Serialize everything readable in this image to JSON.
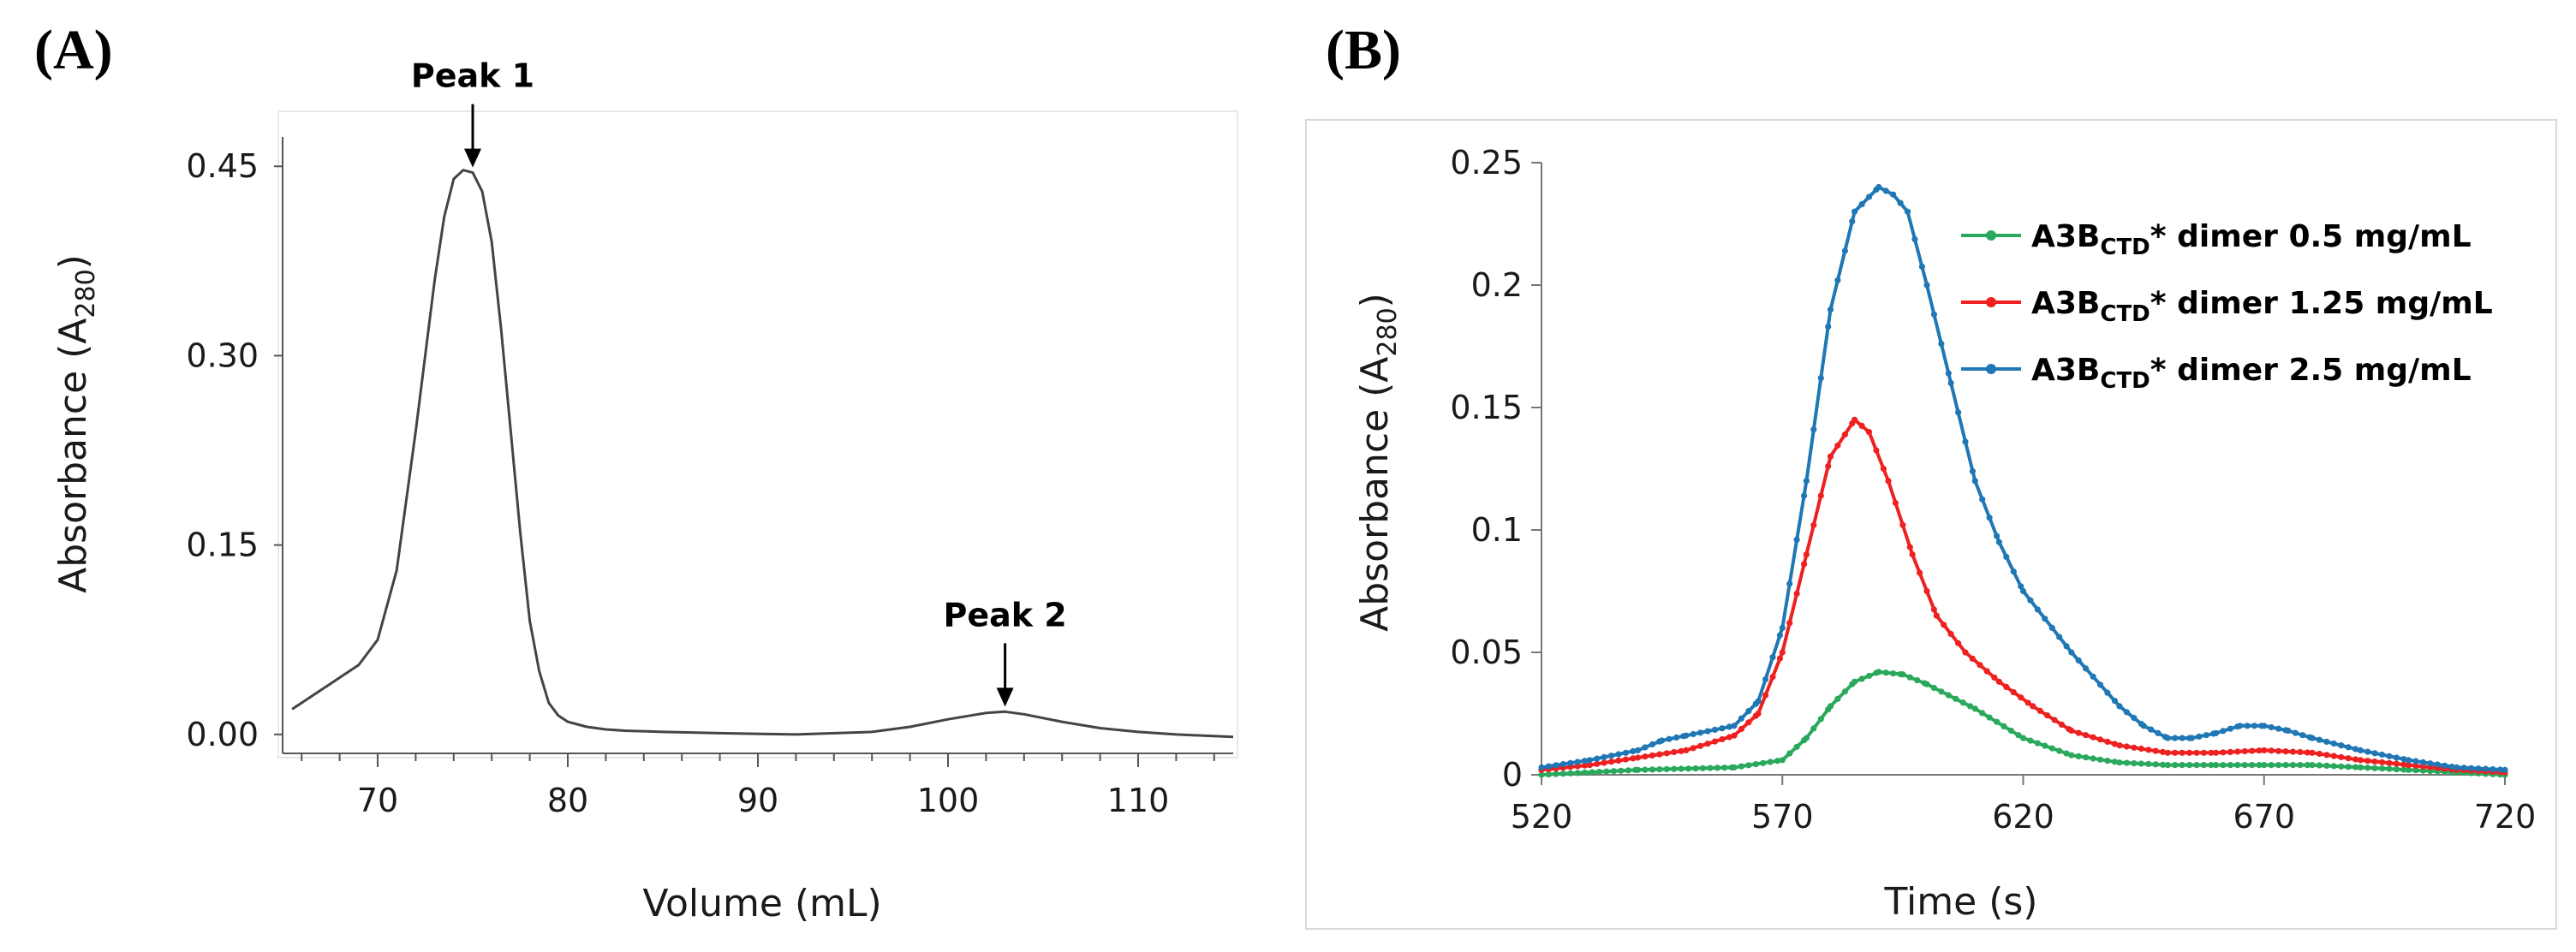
{
  "chart_data": [
    {
      "panel": "(A)",
      "type": "line",
      "xlabel": "Volume (mL)",
      "ylabel": {
        "text": "Absorbance (A",
        "sub": "280",
        "tail": ")"
      },
      "xlim": [
        65,
        115
      ],
      "ylim": [
        -0.015,
        0.48
      ],
      "xticks": [
        70,
        80,
        90,
        100,
        110
      ],
      "xtick_labels": [
        "70",
        "80",
        "90",
        "100",
        "110"
      ],
      "yticks": [
        0.0,
        0.15,
        0.3,
        0.45
      ],
      "ytick_labels": [
        "0.00",
        "0.15",
        "0.30",
        "0.45"
      ],
      "color": "#444444",
      "series": [
        {
          "x": [
            65.5,
            66,
            67,
            68,
            69,
            70,
            71,
            72,
            72.5,
            73,
            73.5,
            74,
            74.5,
            75,
            75.5,
            76,
            76.5,
            77,
            77.5,
            78,
            78.5,
            79,
            79.5,
            80,
            81,
            82,
            83,
            85,
            88,
            92,
            96,
            98,
            100,
            102,
            103,
            104,
            106,
            108,
            110,
            112,
            115
          ],
          "y": [
            0.02,
            0.025,
            0.035,
            0.045,
            0.055,
            0.075,
            0.13,
            0.24,
            0.3,
            0.36,
            0.41,
            0.44,
            0.447,
            0.445,
            0.43,
            0.39,
            0.32,
            0.24,
            0.16,
            0.09,
            0.05,
            0.025,
            0.015,
            0.01,
            0.006,
            0.004,
            0.003,
            0.002,
            0.001,
            0.0,
            0.002,
            0.006,
            0.012,
            0.017,
            0.018,
            0.016,
            0.01,
            0.005,
            0.002,
            0.0,
            -0.002
          ]
        }
      ],
      "annotations": [
        {
          "text": "Peak 1",
          "x": 75,
          "y": 0.445
        },
        {
          "text": "Peak 2",
          "x": 103,
          "y": 0.018
        }
      ]
    },
    {
      "panel": "(B)",
      "type": "line",
      "xlabel": "Time (s)",
      "ylabel": {
        "text": "Absorbance (A",
        "sub": "280",
        "tail": ")"
      },
      "xlim": [
        520,
        720
      ],
      "ylim": [
        0,
        0.25
      ],
      "xticks": [
        520,
        570,
        620,
        670,
        720
      ],
      "xtick_labels": [
        "520",
        "570",
        "620",
        "670",
        "720"
      ],
      "yticks": [
        0,
        0.05,
        0.1,
        0.15,
        0.2,
        0.25
      ],
      "ytick_labels": [
        "0",
        "0.05",
        "0.1",
        "0.15",
        "0.2",
        "0.25"
      ],
      "legend_position": "top-right",
      "series": [
        {
          "name": "A3B",
          "sub": "CTD",
          "suffix": "* dimer 0.5 mg/mL",
          "color": "#2aa85c",
          "x": [
            520,
            540,
            560,
            570,
            575,
            580,
            585,
            590,
            595,
            600,
            610,
            620,
            630,
            640,
            650,
            660,
            670,
            680,
            690,
            700,
            710,
            720
          ],
          "y": [
            0.0,
            0.002,
            0.003,
            0.006,
            0.015,
            0.028,
            0.038,
            0.042,
            0.041,
            0.037,
            0.027,
            0.015,
            0.008,
            0.005,
            0.004,
            0.004,
            0.004,
            0.004,
            0.003,
            0.002,
            0.001,
            0.0
          ]
        },
        {
          "name": "A3B",
          "sub": "CTD",
          "suffix": "* dimer 1.25 mg/mL",
          "color": "#ee2020",
          "x": [
            520,
            530,
            540,
            550,
            560,
            565,
            570,
            575,
            580,
            585,
            588,
            592,
            597,
            602,
            608,
            615,
            622,
            630,
            640,
            650,
            660,
            670,
            680,
            690,
            700,
            710,
            720
          ],
          "y": [
            0.002,
            0.004,
            0.007,
            0.01,
            0.016,
            0.025,
            0.05,
            0.09,
            0.13,
            0.145,
            0.14,
            0.12,
            0.09,
            0.065,
            0.05,
            0.038,
            0.028,
            0.018,
            0.012,
            0.009,
            0.009,
            0.01,
            0.009,
            0.006,
            0.004,
            0.002,
            0.001
          ]
        },
        {
          "name": "A3B",
          "sub": "CTD",
          "suffix": "* dimer 2.5 mg/mL",
          "color": "#1f77b4",
          "x": [
            520,
            530,
            540,
            545,
            550,
            560,
            565,
            570,
            575,
            580,
            585,
            590,
            593,
            596,
            600,
            605,
            610,
            615,
            620,
            630,
            640,
            645,
            650,
            655,
            660,
            665,
            670,
            675,
            680,
            690,
            700,
            710,
            720
          ],
          "y": [
            0.003,
            0.006,
            0.01,
            0.014,
            0.016,
            0.02,
            0.03,
            0.06,
            0.12,
            0.19,
            0.23,
            0.24,
            0.237,
            0.23,
            0.2,
            0.16,
            0.12,
            0.095,
            0.075,
            0.05,
            0.028,
            0.02,
            0.015,
            0.015,
            0.017,
            0.02,
            0.02,
            0.018,
            0.015,
            0.01,
            0.006,
            0.003,
            0.002
          ]
        }
      ]
    }
  ]
}
